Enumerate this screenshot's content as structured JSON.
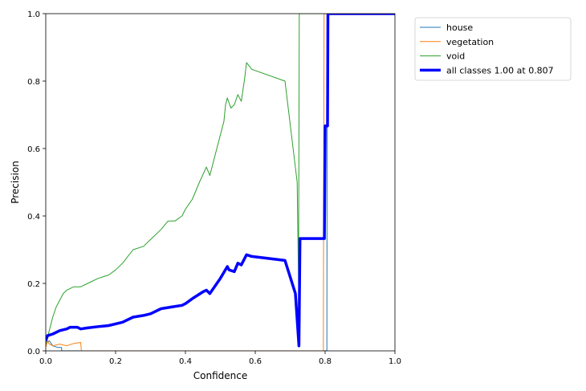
{
  "chart_data": {
    "type": "line",
    "title": "",
    "xlabel": "Confidence",
    "ylabel": "Precision",
    "xlim": [
      0,
      1
    ],
    "ylim": [
      0,
      1
    ],
    "xticks": [
      "0.0",
      "0.2",
      "0.4",
      "0.6",
      "0.8",
      "1.0"
    ],
    "yticks": [
      "0.0",
      "0.2",
      "0.4",
      "0.6",
      "0.8",
      "1.0"
    ],
    "grid": false,
    "legend_placement": "outside-top-right",
    "series": [
      {
        "name": "house",
        "color": "#1f77b4",
        "width": "thin",
        "points": [
          [
            0,
            0.02
          ],
          [
            0.01,
            0.03
          ],
          [
            0.02,
            0.015
          ],
          [
            0.035,
            0.01
          ],
          [
            0.045,
            0.01
          ],
          [
            0.046,
            0
          ],
          [
            0.805,
            0
          ],
          [
            0.806,
            1
          ],
          [
            1,
            1
          ]
        ]
      },
      {
        "name": "vegetation",
        "color": "#ff7f0e",
        "width": "thin",
        "points": [
          [
            0,
            0.01
          ],
          [
            0.005,
            0.03
          ],
          [
            0.01,
            0.02
          ],
          [
            0.02,
            0.015
          ],
          [
            0.04,
            0.02
          ],
          [
            0.06,
            0.015
          ],
          [
            0.08,
            0.022
          ],
          [
            0.1,
            0.025
          ],
          [
            0.102,
            0
          ],
          [
            0.795,
            0
          ],
          [
            0.797,
            1
          ],
          [
            1,
            1
          ]
        ]
      },
      {
        "name": "void",
        "color": "#2ca02c",
        "width": "thin",
        "points": [
          [
            0,
            0.02
          ],
          [
            0.01,
            0.06
          ],
          [
            0.02,
            0.1
          ],
          [
            0.03,
            0.13
          ],
          [
            0.04,
            0.15
          ],
          [
            0.05,
            0.17
          ],
          [
            0.06,
            0.18
          ],
          [
            0.07,
            0.185
          ],
          [
            0.08,
            0.19
          ],
          [
            0.1,
            0.19
          ],
          [
            0.12,
            0.2
          ],
          [
            0.15,
            0.215
          ],
          [
            0.18,
            0.225
          ],
          [
            0.2,
            0.24
          ],
          [
            0.22,
            0.26
          ],
          [
            0.25,
            0.3
          ],
          [
            0.28,
            0.31
          ],
          [
            0.3,
            0.33
          ],
          [
            0.33,
            0.36
          ],
          [
            0.35,
            0.385
          ],
          [
            0.37,
            0.385
          ],
          [
            0.39,
            0.4
          ],
          [
            0.4,
            0.42
          ],
          [
            0.42,
            0.45
          ],
          [
            0.44,
            0.5
          ],
          [
            0.46,
            0.545
          ],
          [
            0.47,
            0.52
          ],
          [
            0.49,
            0.6
          ],
          [
            0.51,
            0.68
          ],
          [
            0.515,
            0.73
          ],
          [
            0.52,
            0.75
          ],
          [
            0.53,
            0.72
          ],
          [
            0.54,
            0.73
          ],
          [
            0.55,
            0.76
          ],
          [
            0.56,
            0.74
          ],
          [
            0.57,
            0.81
          ],
          [
            0.575,
            0.855
          ],
          [
            0.59,
            0.835
          ],
          [
            0.685,
            0.8
          ],
          [
            0.72,
            0.5
          ],
          [
            0.724,
            0.2
          ],
          [
            0.726,
            1
          ],
          [
            1,
            1
          ]
        ]
      },
      {
        "name": "all classes 1.00 at 0.807",
        "color": "#0000ff",
        "width": "thick",
        "points": [
          [
            0,
            0.03
          ],
          [
            0.005,
            0.045
          ],
          [
            0.02,
            0.05
          ],
          [
            0.04,
            0.06
          ],
          [
            0.06,
            0.065
          ],
          [
            0.07,
            0.07
          ],
          [
            0.09,
            0.07
          ],
          [
            0.1,
            0.065
          ],
          [
            0.12,
            0.068
          ],
          [
            0.15,
            0.072
          ],
          [
            0.18,
            0.075
          ],
          [
            0.2,
            0.08
          ],
          [
            0.22,
            0.085
          ],
          [
            0.25,
            0.1
          ],
          [
            0.28,
            0.105
          ],
          [
            0.3,
            0.11
          ],
          [
            0.33,
            0.125
          ],
          [
            0.36,
            0.13
          ],
          [
            0.39,
            0.135
          ],
          [
            0.4,
            0.14
          ],
          [
            0.42,
            0.155
          ],
          [
            0.45,
            0.175
          ],
          [
            0.46,
            0.18
          ],
          [
            0.47,
            0.17
          ],
          [
            0.5,
            0.215
          ],
          [
            0.52,
            0.25
          ],
          [
            0.525,
            0.24
          ],
          [
            0.54,
            0.235
          ],
          [
            0.55,
            0.26
          ],
          [
            0.56,
            0.255
          ],
          [
            0.575,
            0.285
          ],
          [
            0.59,
            0.28
          ],
          [
            0.685,
            0.268
          ],
          [
            0.715,
            0.17
          ],
          [
            0.725,
            0.015
          ],
          [
            0.728,
            0.333
          ],
          [
            0.798,
            0.333
          ],
          [
            0.8,
            0.667
          ],
          [
            0.807,
            0.667
          ],
          [
            0.808,
            1
          ],
          [
            1,
            1
          ]
        ]
      }
    ]
  }
}
